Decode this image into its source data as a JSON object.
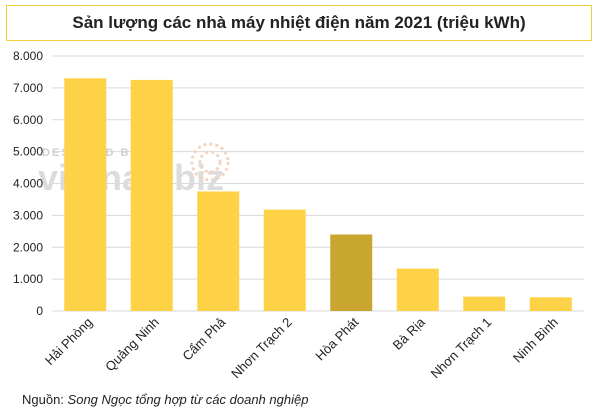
{
  "title": "Sản lượng các nhà máy nhiệt điện năm 2021 (triệu kWh)",
  "source_label": "Nguồn:",
  "source_text": "Song Ngọc tổng hợp từ các doanh nghiệp",
  "watermark": {
    "small": "DESIGNED BY",
    "brand": "vietnambiz"
  },
  "colors": {
    "bar": "#fdd247",
    "highlight": "#c9a62f",
    "grid": "#d9d9d9",
    "title_border": "#f5cf3a"
  },
  "chart_data": {
    "type": "bar",
    "title": "Sản lượng các nhà máy nhiệt điện năm 2021 (triệu kWh)",
    "categories": [
      "Hải Phòng",
      "Quảng Ninh",
      "Cẩm Phả",
      "Nhơn Trạch 2",
      "Hòa Phát",
      "Bà Rịa",
      "Nhơn Trạch 1",
      "Ninh Bình"
    ],
    "values": [
      7300,
      7250,
      3750,
      3180,
      2400,
      1330,
      450,
      430
    ],
    "highlight_category": "Hòa Phát",
    "ylim": [
      0,
      8000
    ],
    "yticks": [
      0,
      1000,
      2000,
      3000,
      4000,
      5000,
      6000,
      7000,
      8000
    ],
    "ytick_labels": [
      "0",
      "1.000",
      "2.000",
      "3.000",
      "4.000",
      "5.000",
      "6.000",
      "7.000",
      "8.000"
    ],
    "grid": true,
    "legend": "none"
  }
}
